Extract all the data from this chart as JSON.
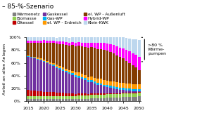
{
  "title": "– 85-%-Szenario",
  "years": [
    2015,
    2016,
    2017,
    2018,
    2019,
    2020,
    2021,
    2022,
    2023,
    2024,
    2025,
    2026,
    2027,
    2028,
    2029,
    2030,
    2031,
    2032,
    2033,
    2034,
    2035,
    2036,
    2037,
    2038,
    2039,
    2040,
    2041,
    2042,
    2043,
    2044,
    2045,
    2046,
    2047,
    2048,
    2049,
    2050
  ],
  "series": {
    "Wärmenetz": [
      3,
      3,
      3,
      3,
      3,
      3,
      3,
      3,
      3,
      3,
      3,
      3,
      3,
      3,
      3,
      3,
      4,
      4,
      4,
      4,
      5,
      5,
      5,
      5,
      5,
      6,
      6,
      6,
      6,
      6,
      7,
      7,
      7,
      7,
      7,
      8
    ],
    "Biomasse": [
      5,
      5,
      5,
      5,
      5,
      5,
      5,
      5,
      5,
      5,
      5,
      5,
      5,
      5,
      5,
      5,
      5,
      5,
      5,
      5,
      5,
      5,
      5,
      5,
      5,
      5,
      5,
      5,
      5,
      5,
      5,
      5,
      5,
      5,
      5,
      5
    ],
    "Ölkessel": [
      10,
      9,
      9,
      8,
      8,
      7,
      7,
      6,
      6,
      5,
      5,
      5,
      4,
      4,
      4,
      3,
      3,
      3,
      3,
      2,
      2,
      2,
      2,
      2,
      2,
      1,
      1,
      1,
      1,
      1,
      1,
      1,
      1,
      1,
      1,
      1
    ],
    "Gaskessel": [
      52,
      51,
      50,
      49,
      48,
      47,
      45,
      43,
      41,
      39,
      37,
      35,
      33,
      31,
      29,
      27,
      25,
      23,
      21,
      19,
      18,
      16,
      14,
      13,
      11,
      10,
      9,
      8,
      7,
      6,
      5,
      4,
      4,
      3,
      3,
      2
    ],
    "Gas-WP": [
      1,
      1,
      1,
      1,
      1,
      1,
      1,
      2,
      2,
      2,
      2,
      2,
      2,
      2,
      3,
      3,
      3,
      3,
      3,
      3,
      3,
      3,
      3,
      3,
      3,
      3,
      3,
      3,
      3,
      3,
      3,
      3,
      3,
      3,
      3,
      3
    ],
    "el. WP - Erdreich": [
      1,
      1,
      1,
      2,
      2,
      2,
      2,
      2,
      3,
      3,
      3,
      3,
      4,
      4,
      4,
      4,
      5,
      5,
      5,
      5,
      6,
      6,
      6,
      7,
      7,
      7,
      7,
      8,
      8,
      8,
      8,
      8,
      8,
      8,
      8,
      8
    ],
    "el. WP - Außenluft": [
      20,
      22,
      23,
      24,
      25,
      27,
      28,
      30,
      31,
      33,
      34,
      36,
      37,
      38,
      40,
      41,
      42,
      43,
      44,
      46,
      46,
      47,
      47,
      47,
      48,
      47,
      46,
      44,
      42,
      40,
      38,
      35,
      32,
      29,
      26,
      22
    ],
    "Hybrid-WP": [
      3,
      3,
      3,
      3,
      3,
      4,
      4,
      4,
      4,
      4,
      5,
      5,
      5,
      5,
      5,
      6,
      6,
      6,
      7,
      7,
      7,
      8,
      9,
      9,
      10,
      11,
      12,
      13,
      14,
      15,
      16,
      17,
      18,
      19,
      20,
      21
    ],
    "Klein-KWK": [
      5,
      5,
      5,
      5,
      5,
      4,
      5,
      5,
      5,
      5,
      6,
      6,
      7,
      7,
      7,
      8,
      7,
      8,
      8,
      9,
      8,
      8,
      9,
      9,
      9,
      10,
      11,
      12,
      14,
      16,
      17,
      19,
      20,
      22,
      24,
      26
    ]
  },
  "colors": {
    "Wärmenetz": "#808080",
    "Biomasse": "#92d050",
    "Ölkessel": "#c00000",
    "Gaskessel": "#7030a0",
    "Gas-WP": "#00b0f0",
    "el. WP - Erdreich": "#ff9900",
    "el. WP - Außenluft": "#833c00",
    "Hybrid-WP": "#ff00ff",
    "Klein-KWK": "#bdd7ee"
  },
  "series_order": [
    "Wärmenetz",
    "Biomasse",
    "Ölkessel",
    "Gaskessel",
    "Gas-WP",
    "el. WP - Erdreich",
    "el. WP - Außenluft",
    "Hybrid-WP",
    "Klein-KWK"
  ],
  "ylabel": "Anteil an allen Anlagen",
  "ylim": [
    0,
    100
  ],
  "yticks": [
    0,
    20,
    40,
    60,
    80,
    100
  ],
  "ytick_labels": [
    "0%",
    "20%",
    "40%",
    "60%",
    "80%",
    "100%"
  ],
  "annotation": ">80 %\nWärme-\npumpen",
  "bg_color": "#ffffff",
  "title_fontsize": 6.5,
  "legend_fontsize": 4.2,
  "axis_fontsize": 4.5
}
